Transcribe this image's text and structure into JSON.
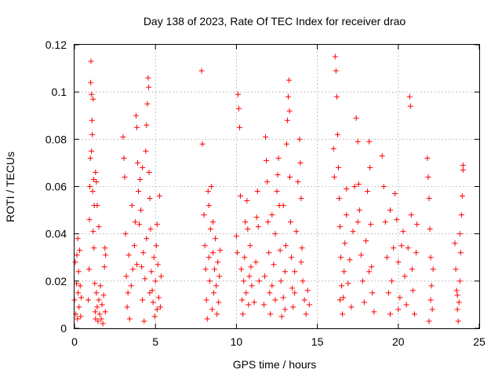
{
  "chart_data": {
    "type": "scatter",
    "title": "Day 138 of 2023, Rate Of TEC Index for receiver drao",
    "xlabel": "GPS time / hours",
    "ylabel": "ROTI / TECUs",
    "xlim": [
      0,
      25
    ],
    "ylim": [
      0,
      0.12
    ],
    "xticks": [
      "0",
      "5",
      "10",
      "15",
      "20",
      "25"
    ],
    "yticks": [
      "0",
      "0.02",
      "0.04",
      "0.06",
      "0.08",
      "0.1",
      "0.12"
    ],
    "grid": true,
    "marker": "plus",
    "color": "#ff0000",
    "series": [
      {
        "values": [
          [
            0.0,
            0.012
          ],
          [
            0.05,
            0.028
          ],
          [
            0.08,
            0.006
          ],
          [
            0.12,
            0.019
          ],
          [
            0.15,
            0.031
          ],
          [
            0.18,
            0.004
          ],
          [
            0.22,
            0.015
          ],
          [
            0.25,
            0.024
          ],
          [
            0.28,
            0.009
          ],
          [
            0.32,
            0.033
          ],
          [
            0.35,
            0.018
          ],
          [
            0.38,
            0.005
          ],
          [
            0.42,
            0.013
          ],
          [
            0.2,
            0.038
          ],
          [
            0.85,
            0.012
          ],
          [
            0.9,
            0.025
          ],
          [
            0.92,
            0.046
          ],
          [
            0.95,
            0.06
          ],
          [
            0.98,
            0.072
          ],
          [
            1.0,
            0.104
          ],
          [
            1.02,
            0.113
          ],
          [
            1.05,
            0.099
          ],
          [
            1.08,
            0.088
          ],
          [
            1.1,
            0.082
          ],
          [
            1.12,
            0.058
          ],
          [
            1.15,
            0.041
          ],
          [
            1.18,
            0.063
          ],
          [
            1.2,
            0.034
          ],
          [
            1.22,
            0.052
          ],
          [
            1.25,
            0.019
          ],
          [
            1.28,
            0.007
          ],
          [
            1.3,
            0.004
          ],
          [
            1.35,
            0.015
          ],
          [
            1.4,
            0.009
          ],
          [
            1.45,
            0.003
          ],
          [
            1.5,
            0.012
          ],
          [
            1.55,
            0.006
          ],
          [
            1.6,
            0.018
          ],
          [
            1.65,
            0.004
          ],
          [
            1.7,
            0.01
          ],
          [
            1.75,
            0.002
          ],
          [
            1.8,
            0.014
          ],
          [
            1.85,
            0.026
          ],
          [
            1.88,
            0.034
          ],
          [
            1.9,
            0.007
          ],
          [
            1.92,
            0.031
          ],
          [
            1.3,
            0.066
          ],
          [
            1.4,
            0.052
          ],
          [
            1.5,
            0.043
          ],
          [
            1.15,
            0.097
          ],
          [
            1.05,
            0.075
          ],
          [
            1.35,
            0.062
          ],
          [
            3.0,
            0.081
          ],
          [
            3.05,
            0.072
          ],
          [
            3.1,
            0.064
          ],
          [
            3.15,
            0.04
          ],
          [
            3.2,
            0.022
          ],
          [
            3.25,
            0.009
          ],
          [
            3.3,
            0.015
          ],
          [
            3.35,
            0.031
          ],
          [
            3.4,
            0.004
          ],
          [
            3.5,
            0.018
          ],
          [
            3.6,
            0.025
          ],
          [
            3.7,
            0.035
          ],
          [
            3.8,
            0.09
          ],
          [
            3.85,
            0.085
          ],
          [
            3.9,
            0.07
          ],
          [
            3.95,
            0.058
          ],
          [
            4.0,
            0.044
          ],
          [
            4.05,
            0.063
          ],
          [
            4.1,
            0.05
          ],
          [
            4.15,
            0.026
          ],
          [
            4.2,
            0.012
          ],
          [
            4.25,
            0.032
          ],
          [
            4.3,
            0.003
          ],
          [
            4.35,
            0.021
          ],
          [
            4.4,
            0.075
          ],
          [
            4.45,
            0.086
          ],
          [
            4.5,
            0.095
          ],
          [
            4.55,
            0.106
          ],
          [
            4.58,
            0.102
          ],
          [
            4.6,
            0.066
          ],
          [
            4.65,
            0.055
          ],
          [
            4.7,
            0.042
          ],
          [
            4.75,
            0.024
          ],
          [
            4.8,
            0.016
          ],
          [
            4.85,
            0.011
          ],
          [
            4.9,
            0.03
          ],
          [
            4.95,
            0.005
          ],
          [
            5.0,
            0.02
          ],
          [
            5.05,
            0.035
          ],
          [
            5.1,
            0.044
          ],
          [
            5.15,
            0.027
          ],
          [
            5.2,
            0.013
          ],
          [
            5.25,
            0.056
          ],
          [
            5.3,
            0.009
          ],
          [
            5.35,
            0.022
          ],
          [
            3.55,
            0.052
          ],
          [
            3.75,
            0.045
          ],
          [
            4.2,
            0.068
          ],
          [
            4.45,
            0.038
          ],
          [
            3.85,
            0.027
          ],
          [
            4.65,
            0.015
          ],
          [
            5.1,
            0.008
          ],
          [
            7.85,
            0.109
          ],
          [
            7.9,
            0.078
          ],
          [
            8.0,
            0.048
          ],
          [
            8.05,
            0.035
          ],
          [
            8.1,
            0.025
          ],
          [
            8.15,
            0.012
          ],
          [
            8.2,
            0.004
          ],
          [
            8.25,
            0.058
          ],
          [
            8.3,
            0.03
          ],
          [
            8.35,
            0.02
          ],
          [
            8.4,
            0.042
          ],
          [
            8.45,
            0.06
          ],
          [
            8.5,
            0.008
          ],
          [
            8.55,
            0.032
          ],
          [
            8.6,
            0.015
          ],
          [
            8.65,
            0.025
          ],
          [
            8.7,
            0.038
          ],
          [
            8.75,
            0.018
          ],
          [
            8.8,
            0.006
          ],
          [
            8.85,
            0.028
          ],
          [
            8.9,
            0.011
          ],
          [
            8.95,
            0.022
          ],
          [
            9.0,
            0.033
          ],
          [
            8.3,
            0.052
          ],
          [
            8.55,
            0.045
          ],
          [
            10.0,
            0.039
          ],
          [
            10.05,
            0.032
          ],
          [
            10.1,
            0.099
          ],
          [
            10.15,
            0.093
          ],
          [
            10.2,
            0.085
          ],
          [
            10.25,
            0.056
          ],
          [
            10.3,
            0.025
          ],
          [
            10.35,
            0.012
          ],
          [
            10.4,
            0.006
          ],
          [
            10.45,
            0.02
          ],
          [
            10.5,
            0.03
          ],
          [
            10.55,
            0.045
          ],
          [
            10.6,
            0.015
          ],
          [
            10.65,
            0.054
          ],
          [
            10.7,
            0.042
          ],
          [
            10.75,
            0.01
          ],
          [
            10.8,
            0.022
          ],
          [
            10.85,
            0.035
          ],
          [
            10.9,
            0.026
          ],
          [
            10.95,
            0.018
          ],
          [
            11.1,
            0.011
          ],
          [
            11.2,
            0.028
          ],
          [
            11.25,
            0.047
          ],
          [
            11.3,
            0.058
          ],
          [
            11.35,
            0.043
          ],
          [
            11.4,
            0.02
          ],
          [
            11.7,
            0.01
          ],
          [
            11.75,
            0.022
          ],
          [
            11.8,
            0.081
          ],
          [
            11.85,
            0.071
          ],
          [
            11.9,
            0.062
          ],
          [
            11.95,
            0.045
          ],
          [
            12.0,
            0.032
          ],
          [
            12.05,
            0.015
          ],
          [
            12.1,
            0.006
          ],
          [
            12.2,
            0.018
          ],
          [
            12.3,
            0.027
          ],
          [
            12.4,
            0.04
          ],
          [
            12.5,
            0.058
          ],
          [
            12.55,
            0.065
          ],
          [
            12.6,
            0.072
          ],
          [
            12.65,
            0.052
          ],
          [
            12.7,
            0.033
          ],
          [
            12.75,
            0.02
          ],
          [
            12.8,
            0.005
          ],
          [
            12.9,
            0.013
          ],
          [
            13.0,
            0.024
          ],
          [
            13.05,
            0.035
          ],
          [
            13.1,
            0.078
          ],
          [
            13.15,
            0.088
          ],
          [
            13.2,
            0.098
          ],
          [
            13.25,
            0.105
          ],
          [
            13.28,
            0.092
          ],
          [
            13.3,
            0.064
          ],
          [
            13.35,
            0.045
          ],
          [
            13.4,
            0.03
          ],
          [
            13.45,
            0.017
          ],
          [
            13.5,
            0.009
          ],
          [
            13.6,
            0.024
          ],
          [
            13.7,
            0.041
          ],
          [
            13.8,
            0.062
          ],
          [
            13.9,
            0.08
          ],
          [
            13.95,
            0.07
          ],
          [
            14.0,
            0.055
          ],
          [
            14.05,
            0.034
          ],
          [
            14.1,
            0.02
          ],
          [
            14.2,
            0.012
          ],
          [
            14.3,
            0.006
          ],
          [
            14.4,
            0.016
          ],
          [
            14.5,
            0.01
          ],
          [
            12.2,
            0.048
          ],
          [
            12.9,
            0.052
          ],
          [
            13.6,
            0.015
          ],
          [
            14.0,
            0.028
          ],
          [
            12.4,
            0.012
          ],
          [
            13.0,
            0.008
          ],
          [
            16.0,
            0.076
          ],
          [
            16.05,
            0.064
          ],
          [
            16.1,
            0.115
          ],
          [
            16.15,
            0.109
          ],
          [
            16.2,
            0.098
          ],
          [
            16.25,
            0.082
          ],
          [
            16.3,
            0.068
          ],
          [
            16.35,
            0.055
          ],
          [
            16.4,
            0.043
          ],
          [
            16.45,
            0.03
          ],
          [
            16.5,
            0.018
          ],
          [
            16.55,
            0.006
          ],
          [
            16.6,
            0.013
          ],
          [
            16.65,
            0.024
          ],
          [
            16.7,
            0.036
          ],
          [
            16.8,
            0.048
          ],
          [
            16.9,
            0.019
          ],
          [
            17.0,
            0.029
          ],
          [
            17.1,
            0.009
          ],
          [
            17.2,
            0.041
          ],
          [
            17.3,
            0.06
          ],
          [
            17.4,
            0.089
          ],
          [
            17.5,
            0.079
          ],
          [
            17.55,
            0.061
          ],
          [
            17.6,
            0.05
          ],
          [
            17.7,
            0.031
          ],
          [
            17.8,
            0.02
          ],
          [
            17.9,
            0.011
          ],
          [
            18.0,
            0.037
          ],
          [
            18.1,
            0.058
          ],
          [
            18.2,
            0.079
          ],
          [
            18.25,
            0.068
          ],
          [
            18.3,
            0.044
          ],
          [
            18.35,
            0.026
          ],
          [
            18.4,
            0.015
          ],
          [
            18.5,
            0.007
          ],
          [
            16.8,
            0.059
          ],
          [
            17.5,
            0.045
          ],
          [
            18.2,
            0.024
          ],
          [
            16.4,
            0.012
          ],
          [
            19.0,
            0.073
          ],
          [
            19.1,
            0.06
          ],
          [
            19.2,
            0.045
          ],
          [
            19.3,
            0.03
          ],
          [
            19.4,
            0.015
          ],
          [
            19.5,
            0.006
          ],
          [
            19.6,
            0.02
          ],
          [
            19.7,
            0.034
          ],
          [
            19.8,
            0.057
          ],
          [
            19.9,
            0.046
          ],
          [
            20.0,
            0.028
          ],
          [
            20.1,
            0.013
          ],
          [
            20.2,
            0.035
          ],
          [
            20.3,
            0.041
          ],
          [
            20.4,
            0.022
          ],
          [
            20.5,
            0.01
          ],
          [
            20.6,
            0.034
          ],
          [
            20.7,
            0.098
          ],
          [
            20.75,
            0.094
          ],
          [
            20.8,
            0.048
          ],
          [
            20.85,
            0.025
          ],
          [
            20.9,
            0.016
          ],
          [
            21.0,
            0.006
          ],
          [
            21.1,
            0.032
          ],
          [
            21.15,
            0.044
          ],
          [
            19.5,
            0.05
          ],
          [
            20.0,
            0.008
          ],
          [
            21.8,
            0.072
          ],
          [
            21.85,
            0.064
          ],
          [
            21.9,
            0.055
          ],
          [
            21.95,
            0.042
          ],
          [
            22.0,
            0.03
          ],
          [
            22.05,
            0.018
          ],
          [
            22.1,
            0.008
          ],
          [
            22.15,
            0.025
          ],
          [
            21.9,
            0.003
          ],
          [
            22.0,
            0.012
          ],
          [
            23.5,
            0.036
          ],
          [
            23.55,
            0.025
          ],
          [
            23.6,
            0.016
          ],
          [
            23.65,
            0.008
          ],
          [
            23.7,
            0.003
          ],
          [
            23.75,
            0.011
          ],
          [
            23.8,
            0.02
          ],
          [
            23.85,
            0.032
          ],
          [
            23.9,
            0.048
          ],
          [
            23.95,
            0.056
          ],
          [
            24.0,
            0.069
          ],
          [
            24.0,
            0.067
          ],
          [
            23.8,
            0.04
          ],
          [
            23.65,
            0.014
          ]
        ]
      }
    ]
  }
}
